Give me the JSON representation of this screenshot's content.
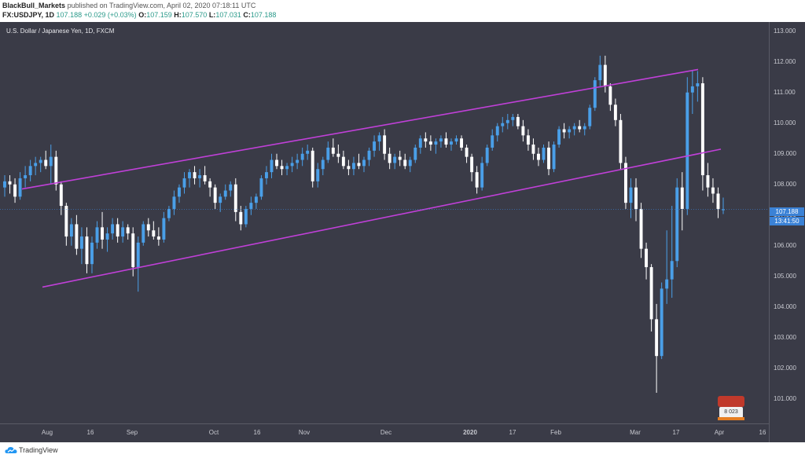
{
  "header": {
    "author": "BlackBull_Markets",
    "published": "published on TradingView.com, April 02, 2020 07:18:11 UTC",
    "symbol": "FX:USDJPY, 1D",
    "last": "107.188",
    "change": "+0.029 (+0.03%)",
    "o_label": "O:",
    "o_value": "107.159",
    "h_label": "H:",
    "h_value": "107.570",
    "l_label": "L:",
    "l_value": "107.031",
    "c_label": "C:",
    "c_value": "107.188"
  },
  "chart_title": "U.S. Dollar / Japanese Yen, 1D, FXCM",
  "price_tag": "107.188",
  "time_tag": "13:41:50",
  "badge_text": "8 023",
  "footer_brand": "TradingView",
  "colors": {
    "up": "#4a9fe8",
    "down": "#ffffff",
    "channel": "#c040d8",
    "background": "#3a3b47"
  },
  "chart_data": {
    "type": "candlestick",
    "title": "U.S. Dollar / Japanese Yen, 1D, FXCM",
    "y_ticks": [
      "113.000",
      "112.000",
      "111.000",
      "110.000",
      "109.000",
      "108.000",
      "107.000",
      "106.000",
      "105.000",
      "104.000",
      "103.000",
      "102.000",
      "101.000"
    ],
    "ylim": [
      100.2,
      113.3
    ],
    "x_ticks": [
      "Aug",
      "16",
      "Sep",
      "Oct",
      "16",
      "Nov",
      "Dec",
      "2020",
      "17",
      "Feb",
      "Mar",
      "17",
      "Apr",
      "16"
    ],
    "candles": [
      [
        107.9,
        108.3,
        107.6,
        108.1
      ],
      [
        108.1,
        108.3,
        107.7,
        108.0
      ],
      [
        108.0,
        108.2,
        107.4,
        107.6
      ],
      [
        107.6,
        108.4,
        107.5,
        108.2
      ],
      [
        108.2,
        108.6,
        107.9,
        108.3
      ],
      [
        108.3,
        108.8,
        108.1,
        108.6
      ],
      [
        108.6,
        108.9,
        108.3,
        108.7
      ],
      [
        108.7,
        108.9,
        108.4,
        108.8
      ],
      [
        108.8,
        109.1,
        108.5,
        108.6
      ],
      [
        108.6,
        109.3,
        108.0,
        108.9
      ],
      [
        108.9,
        109.1,
        107.8,
        108.0
      ],
      [
        108.0,
        108.1,
        107.0,
        107.3
      ],
      [
        107.3,
        107.4,
        106.0,
        106.3
      ],
      [
        106.3,
        106.9,
        106.0,
        106.7
      ],
      [
        106.7,
        107.0,
        105.7,
        105.9
      ],
      [
        105.9,
        106.6,
        105.4,
        106.3
      ],
      [
        106.3,
        106.6,
        105.1,
        105.4
      ],
      [
        105.4,
        106.3,
        105.1,
        106.1
      ],
      [
        106.1,
        106.8,
        105.9,
        106.6
      ],
      [
        106.6,
        107.1,
        105.9,
        106.2
      ],
      [
        106.2,
        106.6,
        105.8,
        106.4
      ],
      [
        106.4,
        106.9,
        106.2,
        106.7
      ],
      [
        106.7,
        106.9,
        106.1,
        106.3
      ],
      [
        106.3,
        106.8,
        106.1,
        106.6
      ],
      [
        106.6,
        106.7,
        106.2,
        106.4
      ],
      [
        106.4,
        106.6,
        105.0,
        105.3
      ],
      [
        105.3,
        106.3,
        104.5,
        106.1
      ],
      [
        106.1,
        106.8,
        106.0,
        106.7
      ],
      [
        106.7,
        106.9,
        106.3,
        106.5
      ],
      [
        106.5,
        106.8,
        106.2,
        106.3
      ],
      [
        106.3,
        106.6,
        106.0,
        106.2
      ],
      [
        106.2,
        107.1,
        106.1,
        106.9
      ],
      [
        106.9,
        107.3,
        106.8,
        107.2
      ],
      [
        107.2,
        107.8,
        107.0,
        107.6
      ],
      [
        107.6,
        108.0,
        107.4,
        107.9
      ],
      [
        107.9,
        108.4,
        107.7,
        108.2
      ],
      [
        108.2,
        108.5,
        107.9,
        108.4
      ],
      [
        108.4,
        108.6,
        108.0,
        108.2
      ],
      [
        108.2,
        108.5,
        107.9,
        108.3
      ],
      [
        108.3,
        108.6,
        108.0,
        108.1
      ],
      [
        108.1,
        108.2,
        107.6,
        107.9
      ],
      [
        107.9,
        108.0,
        107.2,
        107.4
      ],
      [
        107.4,
        107.7,
        107.1,
        107.6
      ],
      [
        107.6,
        108.0,
        107.5,
        107.8
      ],
      [
        107.8,
        108.1,
        107.6,
        108.0
      ],
      [
        108.0,
        108.2,
        106.8,
        107.1
      ],
      [
        107.1,
        107.3,
        106.5,
        106.7
      ],
      [
        106.7,
        107.3,
        106.6,
        107.2
      ],
      [
        107.2,
        107.6,
        107.0,
        107.4
      ],
      [
        107.4,
        107.7,
        107.2,
        107.6
      ],
      [
        107.6,
        108.3,
        107.5,
        108.2
      ],
      [
        108.2,
        108.6,
        108.0,
        108.4
      ],
      [
        108.4,
        109.0,
        108.2,
        108.8
      ],
      [
        108.8,
        109.0,
        108.5,
        108.6
      ],
      [
        108.6,
        108.8,
        108.3,
        108.5
      ],
      [
        108.5,
        108.7,
        108.3,
        108.6
      ],
      [
        108.6,
        108.9,
        108.4,
        108.7
      ],
      [
        108.7,
        109.0,
        108.5,
        108.8
      ],
      [
        108.8,
        109.2,
        108.6,
        109.0
      ],
      [
        109.0,
        109.3,
        108.8,
        109.1
      ],
      [
        109.1,
        109.2,
        107.9,
        108.1
      ],
      [
        108.1,
        108.7,
        107.9,
        108.5
      ],
      [
        108.5,
        108.9,
        108.3,
        108.8
      ],
      [
        108.8,
        109.4,
        108.7,
        109.2
      ],
      [
        109.2,
        109.5,
        108.9,
        109.0
      ],
      [
        109.0,
        109.3,
        108.7,
        108.9
      ],
      [
        108.9,
        109.1,
        108.5,
        108.6
      ],
      [
        108.6,
        108.8,
        108.3,
        108.5
      ],
      [
        108.5,
        108.9,
        108.3,
        108.7
      ],
      [
        108.7,
        109.0,
        108.5,
        108.6
      ],
      [
        108.6,
        108.9,
        108.4,
        108.8
      ],
      [
        108.8,
        109.2,
        108.6,
        109.1
      ],
      [
        109.1,
        109.6,
        108.9,
        109.4
      ],
      [
        109.4,
        109.7,
        109.1,
        109.6
      ],
      [
        109.6,
        109.8,
        108.8,
        109.0
      ],
      [
        109.0,
        109.2,
        108.5,
        108.7
      ],
      [
        108.7,
        109.0,
        108.5,
        108.9
      ],
      [
        108.9,
        109.1,
        108.6,
        108.8
      ],
      [
        108.8,
        109.0,
        108.5,
        108.6
      ],
      [
        108.6,
        108.9,
        108.4,
        108.8
      ],
      [
        108.8,
        109.3,
        108.7,
        109.2
      ],
      [
        109.2,
        109.6,
        109.0,
        109.5
      ],
      [
        109.5,
        109.7,
        109.2,
        109.4
      ],
      [
        109.4,
        109.6,
        109.1,
        109.3
      ],
      [
        109.3,
        109.5,
        109.0,
        109.4
      ],
      [
        109.4,
        109.6,
        109.2,
        109.5
      ],
      [
        109.5,
        109.7,
        109.2,
        109.3
      ],
      [
        109.3,
        109.5,
        109.1,
        109.4
      ],
      [
        109.4,
        109.6,
        109.3,
        109.5
      ],
      [
        109.5,
        109.6,
        109.1,
        109.2
      ],
      [
        109.2,
        109.3,
        108.7,
        108.9
      ],
      [
        108.9,
        109.0,
        108.1,
        108.4
      ],
      [
        108.4,
        108.6,
        107.7,
        107.9
      ],
      [
        107.9,
        108.9,
        107.8,
        108.7
      ],
      [
        108.7,
        109.3,
        108.6,
        109.2
      ],
      [
        109.2,
        109.8,
        109.1,
        109.6
      ],
      [
        109.6,
        110.0,
        109.4,
        109.9
      ],
      [
        109.9,
        110.2,
        109.7,
        110.0
      ],
      [
        110.0,
        110.3,
        109.8,
        110.1
      ],
      [
        110.1,
        110.3,
        109.9,
        110.2
      ],
      [
        110.2,
        110.3,
        109.8,
        109.9
      ],
      [
        109.9,
        110.1,
        109.4,
        109.6
      ],
      [
        109.6,
        109.8,
        109.1,
        109.3
      ],
      [
        109.3,
        109.5,
        108.8,
        109.0
      ],
      [
        109.0,
        109.2,
        108.6,
        108.8
      ],
      [
        108.8,
        109.3,
        108.7,
        109.2
      ],
      [
        109.2,
        109.4,
        108.3,
        108.5
      ],
      [
        108.5,
        109.4,
        108.4,
        109.3
      ],
      [
        109.3,
        109.9,
        109.2,
        109.8
      ],
      [
        109.8,
        110.0,
        109.5,
        109.7
      ],
      [
        109.7,
        109.9,
        109.5,
        109.8
      ],
      [
        109.8,
        110.0,
        109.6,
        109.9
      ],
      [
        109.9,
        110.1,
        109.7,
        109.8
      ],
      [
        109.8,
        110.0,
        109.6,
        109.9
      ],
      [
        109.9,
        110.6,
        109.8,
        110.5
      ],
      [
        110.5,
        111.5,
        110.4,
        111.4
      ],
      [
        111.4,
        112.2,
        111.2,
        111.9
      ],
      [
        111.9,
        112.2,
        111.0,
        111.2
      ],
      [
        111.2,
        111.3,
        110.4,
        110.6
      ],
      [
        110.6,
        110.8,
        109.9,
        110.1
      ],
      [
        110.1,
        110.3,
        108.5,
        108.7
      ],
      [
        108.7,
        108.9,
        107.2,
        107.4
      ],
      [
        107.4,
        108.2,
        106.9,
        107.9
      ],
      [
        107.9,
        108.2,
        106.8,
        107.2
      ],
      [
        107.2,
        107.4,
        105.6,
        105.9
      ],
      [
        105.9,
        106.1,
        104.9,
        105.3
      ],
      [
        105.3,
        105.4,
        103.2,
        103.6
      ],
      [
        103.6,
        104.1,
        101.2,
        102.4
      ],
      [
        102.4,
        104.8,
        102.3,
        104.6
      ],
      [
        104.6,
        106.5,
        104.1,
        104.9
      ],
      [
        104.9,
        107.3,
        104.3,
        105.5
      ],
      [
        105.5,
        108.2,
        105.3,
        107.9
      ],
      [
        107.9,
        108.4,
        106.5,
        107.2
      ],
      [
        107.2,
        111.5,
        107.0,
        111.0
      ],
      [
        111.0,
        111.7,
        110.3,
        111.2
      ],
      [
        111.2,
        111.7,
        110.7,
        111.3
      ],
      [
        111.3,
        111.5,
        107.8,
        108.3
      ],
      [
        108.3,
        108.7,
        107.6,
        107.9
      ],
      [
        107.9,
        108.2,
        107.4,
        107.7
      ],
      [
        107.7,
        107.9,
        106.9,
        107.2
      ],
      [
        107.159,
        107.57,
        107.031,
        107.188
      ]
    ],
    "channel": {
      "upper": {
        "from": [
          "Aug 1 2019",
          107.85
        ],
        "to": [
          "Mar 24 2020",
          111.75
        ]
      },
      "lower": {
        "from": [
          "Jul 24 2019",
          104.65
        ],
        "to": [
          "Mar 31 2020",
          109.15
        ]
      }
    }
  }
}
